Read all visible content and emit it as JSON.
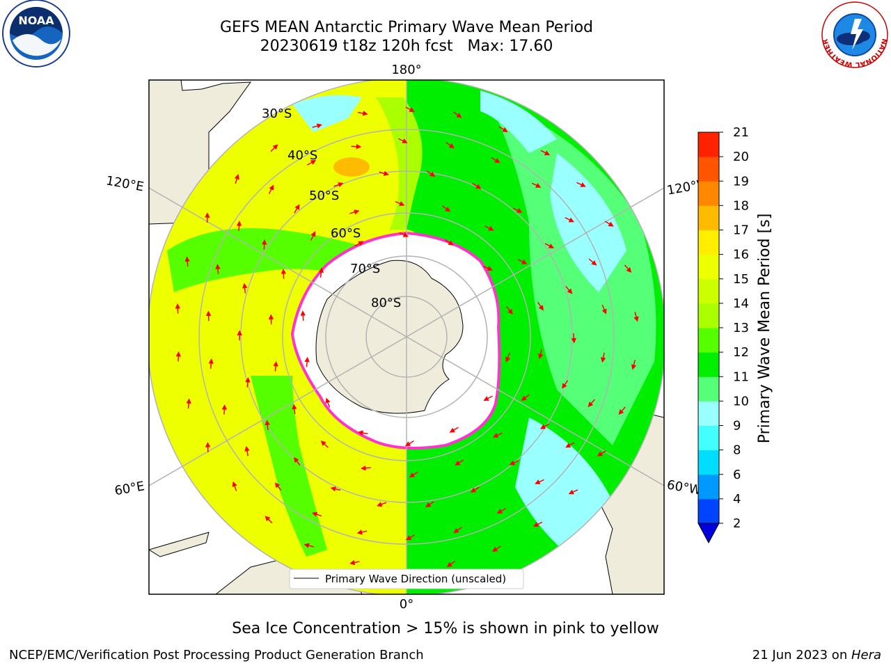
{
  "header": {
    "title_line1": "GEFS MEAN Antarctic Primary Wave Mean Period",
    "title_line2": "20230619 t18z 120h fcst   Max: 17.60"
  },
  "logos": {
    "noaa_text": "NOAA",
    "nws_ring_text": "NATIONAL WEATHER SERVICE"
  },
  "map": {
    "meridian_labels": {
      "top": "180°",
      "bottom": "0°",
      "upper_left": "120°E",
      "upper_right": "120°W",
      "lower_left": "60°E",
      "lower_right": "60°W"
    },
    "lat_labels": [
      "30°S",
      "40°S",
      "50°S",
      "60°S",
      "70°S",
      "80°S"
    ],
    "legend_label": "Primary Wave Direction (unscaled)",
    "colors": {
      "land": "#efecdc",
      "ice": "#ffffff",
      "ice_edge": "#ff33cc",
      "frame": "#000000",
      "arrow": "#ff0000",
      "grid": "#b3b3b3"
    }
  },
  "colorbar": {
    "label": "Primary Wave Mean Period [s]",
    "ticks": [
      "2",
      "4",
      "6",
      "8",
      "9",
      "10",
      "11",
      "12",
      "13",
      "14",
      "15",
      "16",
      "17",
      "18",
      "19",
      "20",
      "21"
    ],
    "colors": [
      "#0044ff",
      "#0099ff",
      "#00ddff",
      "#44ffff",
      "#99ffff",
      "#55ff77",
      "#00ee00",
      "#55ff00",
      "#aaff00",
      "#ccff00",
      "#eeff00",
      "#ffee00",
      "#ffbb00",
      "#ff8800",
      "#ff5500",
      "#ff2200",
      "#ff0000"
    ],
    "extend_color": "#0000dd"
  },
  "caption": "Sea Ice Concentration > 15% is shown in pink to yellow",
  "footer": {
    "left": "NCEP/EMC/Verification Post Processing Product Generation Branch",
    "date": "21 Jun 2023 on ",
    "machine": "Hera"
  }
}
